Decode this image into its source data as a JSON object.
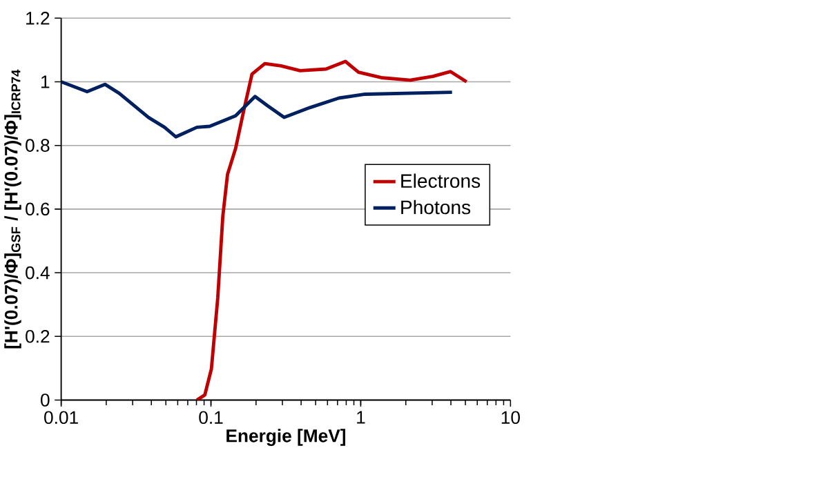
{
  "chart_data": {
    "type": "line",
    "xlabel": "Energie [MeV]",
    "ylabel": "[H'(0.07)/Φ]$_{GSF}$ / [H'(0.07)/Φ]$_{ICRP74}$",
    "log": "x",
    "grid": "y",
    "legend": "right",
    "marker": "none",
    "line_style": "solid",
    "xlim": [
      0.01,
      10
    ],
    "xticks": [
      0.01,
      0.1,
      1,
      10
    ],
    "ylim": [
      0,
      1.2
    ],
    "yticks": [
      0,
      0.2,
      0.4,
      0.6,
      0.8,
      1,
      1.2
    ],
    "series": [
      {
        "name": "Electrons",
        "color": "#c00000",
        "x": [
          0.0806,
          0.091,
          0.1007,
          0.111,
          0.12,
          0.129,
          0.146,
          0.166,
          0.188,
          0.229,
          0.293,
          0.394,
          0.587,
          0.79,
          0.967,
          1.37,
          2.14,
          3.03,
          3.98,
          5.09
        ],
        "values": [
          0,
          0.016,
          0.098,
          0.32,
          0.577,
          0.709,
          0.79,
          0.912,
          1.024,
          1.057,
          1.05,
          1.035,
          1.04,
          1.064,
          1.03,
          1.013,
          1.005,
          1.017,
          1.032,
          1.0
        ]
      },
      {
        "name": "Photons",
        "color": "#002060",
        "x": [
          0.01,
          0.0149,
          0.0196,
          0.0244,
          0.0383,
          0.049,
          0.0583,
          0.0806,
          0.098,
          0.146,
          0.197,
          0.24,
          0.308,
          0.458,
          0.716,
          1.07,
          4.07
        ],
        "values": [
          1.0,
          0.969,
          0.992,
          0.964,
          0.888,
          0.857,
          0.827,
          0.857,
          0.86,
          0.893,
          0.954,
          0.924,
          0.888,
          0.919,
          0.949,
          0.961,
          0.967
        ]
      }
    ]
  }
}
